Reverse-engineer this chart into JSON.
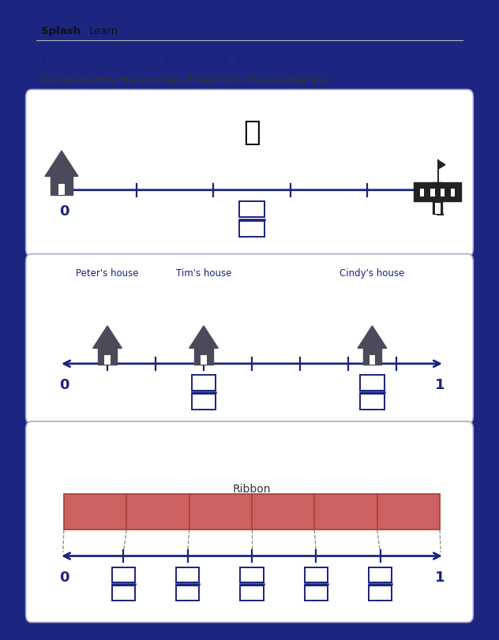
{
  "bg_color": "#1c2580",
  "panel_color": "#ffffff",
  "title": "Fractions on a Number Line",
  "subtitle": "Complete/Write the position of objects on the number line.",
  "brand_bold": "Splash",
  "brand_light": "Learn",
  "title_color": "#1a237e",
  "subtitle_color": "#333333",
  "number_line_color": "#1a237e",
  "box_color": "#1a237e",
  "house_color": "#4a4a5a",
  "school_color": "#222222",
  "ribbon_fill": "#cd6060",
  "ribbon_stroke": "#b04040",
  "panel_edge": "#aaaacc",
  "header_line": "#bbbbbb",
  "dashed_color": "#888888",
  "figsize": [
    6.32,
    8.12
  ],
  "dpi": 100
}
